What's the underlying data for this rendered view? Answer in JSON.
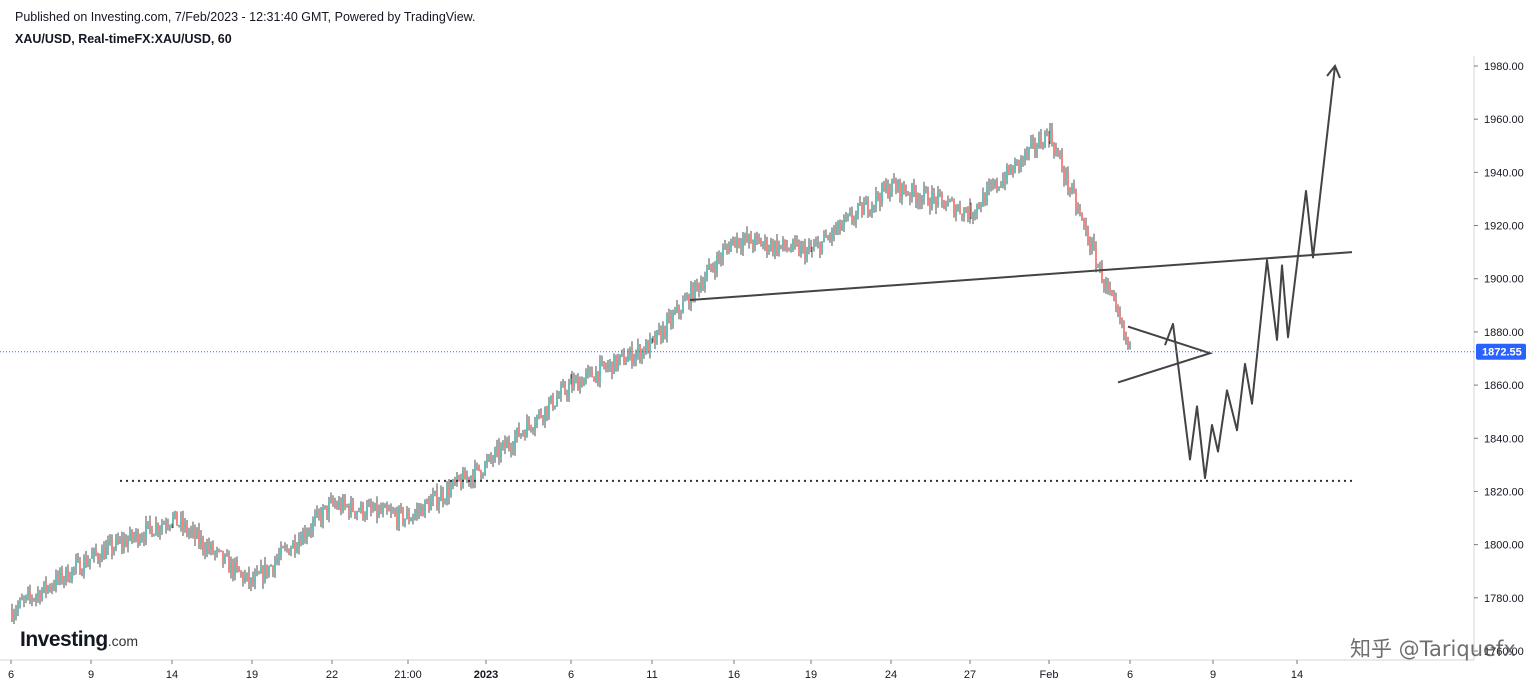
{
  "header": {
    "published": "Published on Investing.com, 7/Feb/2023 - 12:31:40 GMT, Powered by TradingView.",
    "symbol": "XAU/USD, Real-timeFX:XAU/USD, 60"
  },
  "logo": {
    "main": "Investing",
    "suffix": ".com"
  },
  "watermark": "知乎 @Tariquefx",
  "colors": {
    "up": "#26a69a",
    "down": "#ef5350",
    "wick": "#222222",
    "drawing": "#444444",
    "price_line": "#2962ff",
    "price_label_bg": "#2962ff"
  },
  "chart_data": {
    "type": "candlestick",
    "instrument": "XAU/USD",
    "interval": "60",
    "ylim": [
      1760,
      1990
    ],
    "y_ticks": [
      1760,
      1780,
      1800,
      1820,
      1840,
      1860,
      1880,
      1900,
      1920,
      1940,
      1960,
      1980
    ],
    "x_labels": [
      "6",
      "9",
      "14",
      "19",
      "22",
      "21:00",
      "2023",
      "6",
      "11",
      "16",
      "19",
      "24",
      "27",
      "Feb",
      "6",
      "9",
      "14"
    ],
    "last_price": 1872.55,
    "price_path": [
      {
        "label": "6",
        "value": 1775
      },
      {
        "label": "9",
        "value": 1795
      },
      {
        "label": "14",
        "value": 1810
      },
      {
        "label": "19",
        "value": 1785
      },
      {
        "label": "22",
        "value": 1815
      },
      {
        "label": "21:00",
        "value": 1810
      },
      {
        "label": "2023",
        "value": 1830
      },
      {
        "label": "6",
        "value": 1860
      },
      {
        "label": "11",
        "value": 1875
      },
      {
        "label": "16",
        "value": 1915
      },
      {
        "label": "19",
        "value": 1910
      },
      {
        "label": "24",
        "value": 1935
      },
      {
        "label": "27",
        "value": 1925
      },
      {
        "label": "Feb",
        "value": 1955
      },
      {
        "label": "6",
        "value": 1872.55
      }
    ],
    "annotations": {
      "trendline_start": 1892,
      "trendline_end": 1910,
      "support_level": 1824,
      "triangle_top": 1882,
      "triangle_bottom": 1861,
      "triangle_apex": 1872,
      "projection": [
        1875,
        1883,
        1832,
        1852,
        1825,
        1845,
        1835,
        1858,
        1843,
        1868,
        1853,
        1907,
        1877,
        1905,
        1878,
        1933,
        1908,
        1980
      ]
    }
  }
}
